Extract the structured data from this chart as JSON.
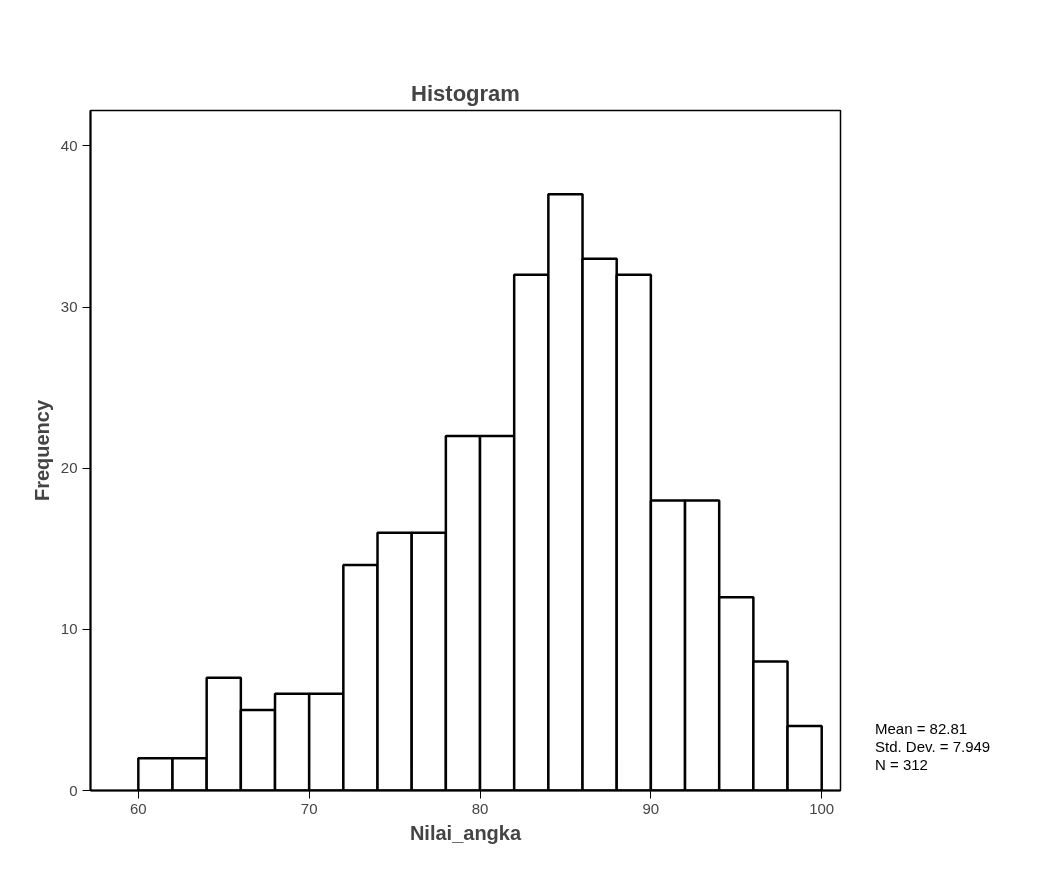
{
  "chart_data": {
    "type": "histogram",
    "title": "Histogram",
    "xlabel": "Nilai_angka",
    "ylabel": "Frequency",
    "bins": [
      60,
      62,
      64,
      66,
      68,
      70,
      72,
      74,
      76,
      78,
      80,
      82,
      84,
      86,
      88,
      90,
      92,
      94,
      96,
      98,
      100
    ],
    "values": [
      2,
      2,
      7,
      5,
      6,
      6,
      14,
      16,
      16,
      22,
      22,
      32,
      37,
      33,
      32,
      18,
      18,
      12,
      8,
      4
    ],
    "color": "#ffffff",
    "xlim": [
      57.2,
      101.1
    ],
    "ylim": [
      0,
      42.2
    ],
    "xticks": [
      60,
      70,
      80,
      90,
      100
    ],
    "yticks": [
      0,
      10,
      20,
      30,
      40
    ],
    "grid": false,
    "annotations": [
      "Mean = 82.81",
      "Std. Dev. = 7.949",
      "N = 312"
    ]
  }
}
